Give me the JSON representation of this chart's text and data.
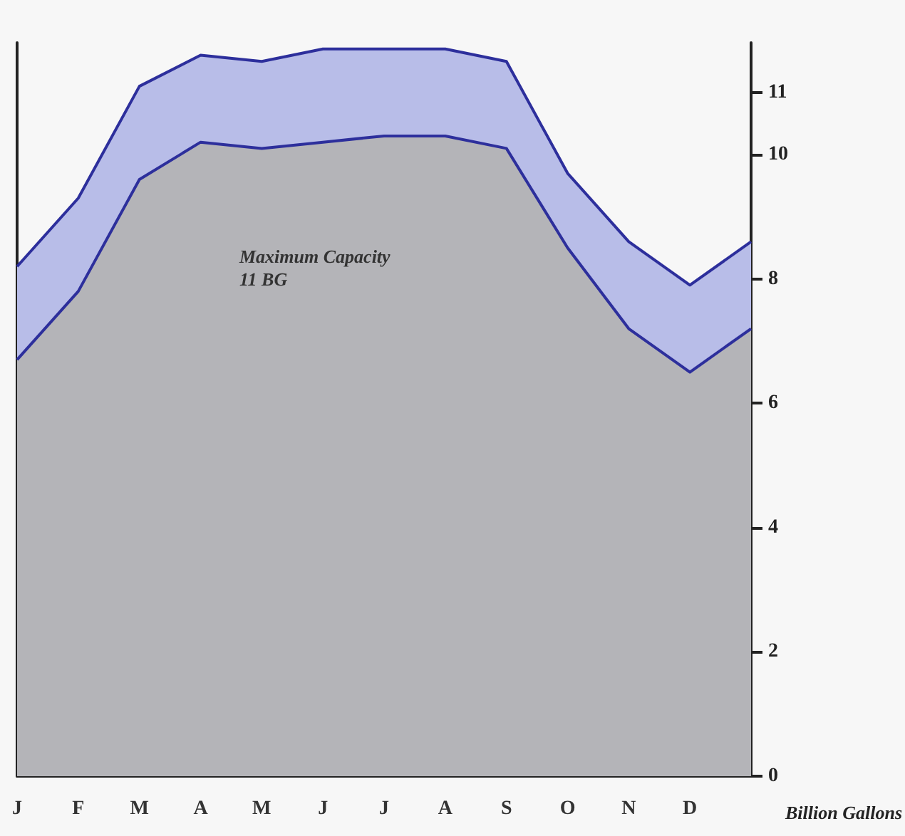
{
  "chart_data": {
    "type": "area",
    "ylabel": "Billion Gallons",
    "annotations": [
      "Maximum Capacity\n11 BG"
    ],
    "categories": [
      "J",
      "F",
      "M",
      "A",
      "M",
      "J",
      "J",
      "A",
      "S",
      "O",
      "N",
      "D",
      null
    ],
    "ylim": [
      0,
      11.8
    ],
    "yticks": [
      0,
      2,
      4,
      6,
      8,
      10,
      11
    ],
    "series": [
      {
        "color": "#b8bde8",
        "values": [
          8.2,
          9.3,
          11.1,
          11.6,
          11.5,
          11.7,
          11.7,
          11.7,
          11.5,
          9.7,
          8.6,
          7.9,
          8.6
        ]
      },
      {
        "color": "#b4b4b8",
        "values": [
          6.7,
          7.8,
          9.6,
          10.2,
          10.1,
          10.2,
          10.3,
          10.3,
          10.1,
          8.5,
          7.2,
          6.5,
          7.2
        ]
      }
    ],
    "grid": false,
    "marker": "none"
  }
}
